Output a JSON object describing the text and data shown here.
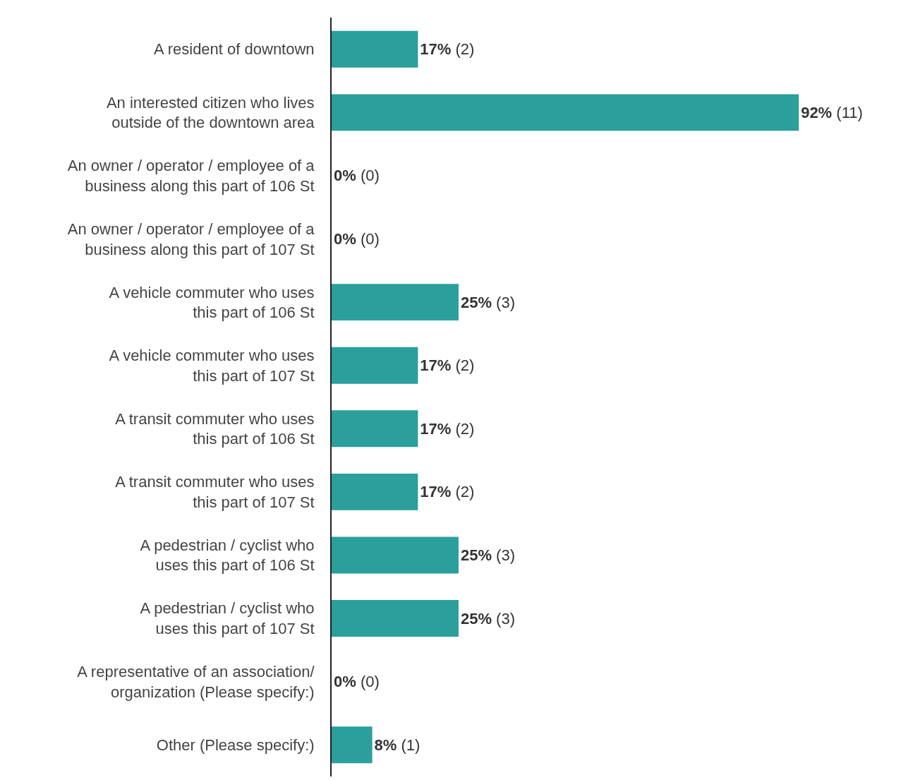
{
  "chart_data": {
    "type": "bar",
    "orientation": "horizontal",
    "categories": [
      "A resident of downtown",
      "An interested citizen who lives\noutside of the downtown area",
      "An owner / operator / employee of a\nbusiness along this part of 106 St",
      "An owner / operator / employee of a\nbusiness along this part of 107 St",
      "A vehicle commuter who uses\nthis part of 106 St",
      "A vehicle commuter who uses\nthis part of 107 St",
      "A transit commuter who uses\nthis part of 106 St",
      "A transit commuter who uses\nthis part of 107 St",
      "A pedestrian / cyclist who\nuses this part of 106 St",
      "A pedestrian / cyclist who\nuses this part of 107 St",
      "A representative of an association/\norganization (Please specify:)",
      "Other (Please specify:)"
    ],
    "values": [
      17,
      92,
      0,
      0,
      25,
      17,
      17,
      17,
      25,
      25,
      0,
      8
    ],
    "value_labels": [
      "17% (2)",
      "92% (11)",
      "0% (0)",
      "0% (0)",
      "25% (3)",
      "17% (2)",
      "17% (2)",
      "17% (2)",
      "25% (3)",
      "25% (3)",
      "0% (0)",
      "8% (1)"
    ],
    "color": "#2a9f9b",
    "legend": false,
    "tick_labels": "y"
  }
}
